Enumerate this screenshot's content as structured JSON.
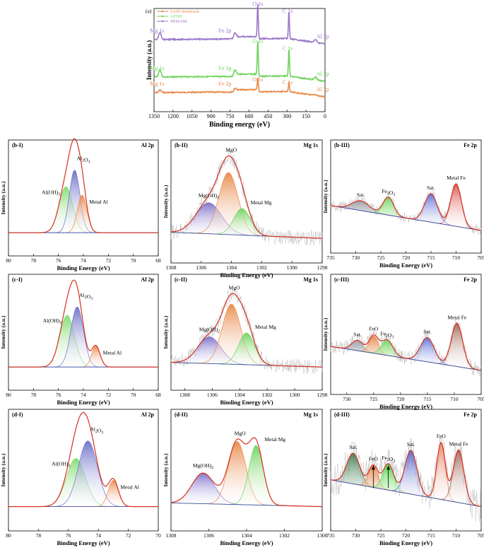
{
  "figure": {
    "accent_colors": {
      "feedstock": "#e8894a",
      "afsd": "#6fd35c",
      "hhsam": "#9b77c9",
      "envelope": "#d9301f"
    }
  },
  "chart_data": [
    {
      "id": "a",
      "type": "line",
      "panel_label": "(a)",
      "xlabel": "Binding energy (eV)",
      "ylabel": "Intensity (a.u.)",
      "xlim": [
        1350,
        0
      ],
      "xticks": [
        1350,
        1200,
        1050,
        900,
        750,
        600,
        450,
        300,
        150,
        0
      ],
      "legend": [
        "5A06 feedstock",
        "AFSD",
        "HHSAM"
      ],
      "legend_position": "top-left",
      "series": [
        {
          "name": "5A06 feedstock",
          "color": "#e8894a",
          "peaks": [
            {
              "x": 1303,
              "label": "Mg 1s"
            },
            {
              "x": 711,
              "label": "Fe 2p"
            },
            {
              "x": 531,
              "label": "O 1s"
            },
            {
              "x": 285,
              "label": "C 1s"
            },
            {
              "x": 74,
              "label": "Al 2p"
            }
          ]
        },
        {
          "name": "AFSD",
          "color": "#6fd35c",
          "peaks": [
            {
              "x": 1303,
              "label": "Mg 1s"
            },
            {
              "x": 711,
              "label": "Fe 2p"
            },
            {
              "x": 531,
              "label": "O 1s"
            },
            {
              "x": 285,
              "label": "C 1s"
            },
            {
              "x": 74,
              "label": "Al 2p"
            }
          ]
        },
        {
          "name": "HHSAM",
          "color": "#9b77c9",
          "peaks": [
            {
              "x": 1303,
              "label": "Mg 1s"
            },
            {
              "x": 711,
              "label": "Fe 2p"
            },
            {
              "x": 531,
              "label": "O 1s"
            },
            {
              "x": 285,
              "label": "C 1s"
            },
            {
              "x": 74,
              "label": "Al 2p"
            }
          ]
        }
      ]
    },
    {
      "id": "b-I",
      "type": "line",
      "panel_label": "(b-I)",
      "element": "Al 2p",
      "xlabel": "Binding Energy (eV)",
      "ylabel": "Intensity (a.u.)",
      "xlim": [
        80,
        68
      ],
      "xticks": [
        80,
        78,
        76,
        74,
        72,
        70,
        68
      ],
      "components": [
        {
          "name": "Al(OH)₃",
          "center": 75.4,
          "fwhm": 1.3,
          "height": 0.55,
          "color": "#7fdc6f"
        },
        {
          "name": "Al₂O₃",
          "center": 74.7,
          "fwhm": 1.0,
          "height": 0.75,
          "color": "#6b6ec9"
        },
        {
          "name": "Metal Al",
          "center": 74.1,
          "fwhm": 0.9,
          "height": 0.45,
          "color": "#e8894a"
        }
      ]
    },
    {
      "id": "b-II",
      "type": "line",
      "panel_label": "(b-II)",
      "element": "Mg 1s",
      "xlabel": "Binding Energy (eV)",
      "ylabel": "Intensity (a.u.)",
      "xlim": [
        1308,
        1298
      ],
      "xticks": [
        1308,
        1306,
        1304,
        1302,
        1300,
        1298
      ],
      "components": [
        {
          "name": "Mg(OH)₂",
          "center": 1305.5,
          "fwhm": 2.0,
          "height": 0.35,
          "color": "#7e6ec9"
        },
        {
          "name": "MgO",
          "center": 1304.2,
          "fwhm": 1.5,
          "height": 0.7,
          "color": "#e8894a"
        },
        {
          "name": "Metal Mg",
          "center": 1303.3,
          "fwhm": 1.3,
          "height": 0.3,
          "color": "#6fd35c"
        }
      ]
    },
    {
      "id": "b-III",
      "type": "line",
      "panel_label": "(b-III)",
      "element": "Fe 2p",
      "xlabel": "Binding Energy (eV)",
      "ylabel": "Intensity (a.u.)",
      "xlim": [
        735,
        705
      ],
      "xticks": [
        735,
        730,
        725,
        720,
        715,
        710,
        705
      ],
      "components": [
        {
          "name": "Sat.",
          "center": 729,
          "fwhm": 4.0,
          "height": 0.12,
          "color": "#9aa0a6"
        },
        {
          "name": "Fe₂O₃",
          "center": 723.5,
          "fwhm": 2.5,
          "height": 0.22,
          "color": "#6fd35c"
        },
        {
          "name": "Sat.",
          "center": 715,
          "fwhm": 3.0,
          "height": 0.35,
          "color": "#5b6fd6"
        },
        {
          "name": "Metal Fe",
          "center": 710,
          "fwhm": 2.5,
          "height": 0.52,
          "color": "#d9534f"
        }
      ]
    },
    {
      "id": "c-I",
      "type": "line",
      "panel_label": "(c-I)",
      "element": "Al 2p",
      "xlabel": "Binding Energy (eV)",
      "ylabel": "Intensity (a.u.)",
      "xlim": [
        80,
        68
      ],
      "xticks": [
        80,
        78,
        76,
        74,
        72,
        70,
        68
      ],
      "components": [
        {
          "name": "Al(OH)₃",
          "center": 75.3,
          "fwhm": 1.4,
          "height": 0.62,
          "color": "#7fdc6f"
        },
        {
          "name": "Al₂O₃",
          "center": 74.5,
          "fwhm": 1.2,
          "height": 0.72,
          "color": "#6b6ec9"
        },
        {
          "name": "Metal Al",
          "center": 73.0,
          "fwhm": 0.8,
          "height": 0.25,
          "color": "#e8894a"
        }
      ]
    },
    {
      "id": "c-II",
      "type": "line",
      "panel_label": "(c-II)",
      "element": "Mg 1s",
      "xlabel": "Binding Energy (eV)",
      "ylabel": "Intensity (a.u.)",
      "xlim": [
        1309,
        1298
      ],
      "xticks": [
        1308,
        1306,
        1304,
        1302,
        1300,
        1298
      ],
      "components": [
        {
          "name": "Mg(OH)₂",
          "center": 1306.2,
          "fwhm": 2.0,
          "height": 0.32,
          "color": "#7e6ec9"
        },
        {
          "name": "MgO",
          "center": 1304.6,
          "fwhm": 1.6,
          "height": 0.72,
          "color": "#e8894a"
        },
        {
          "name": "Metal Mg",
          "center": 1303.5,
          "fwhm": 1.4,
          "height": 0.38,
          "color": "#6fd35c"
        }
      ]
    },
    {
      "id": "c-III",
      "type": "line",
      "panel_label": "(c-III)",
      "element": "Fe 2p",
      "xlabel": "Binding Energy (eV)",
      "ylabel": "Intensity (a.u.)",
      "xlim": [
        733,
        705
      ],
      "xticks": [
        730,
        725,
        720,
        715,
        710,
        705
      ],
      "components": [
        {
          "name": "Sat.",
          "center": 728,
          "fwhm": 2.5,
          "height": 0.12,
          "color": "#9aa0a6"
        },
        {
          "name": "FeO",
          "center": 725,
          "fwhm": 2.0,
          "height": 0.2,
          "color": "#e8894a"
        },
        {
          "name": "Fe₂O₃",
          "center": 722.5,
          "fwhm": 2.5,
          "height": 0.18,
          "color": "#6fd35c"
        },
        {
          "name": "Sat.",
          "center": 715,
          "fwhm": 3.0,
          "height": 0.28,
          "color": "#5b6fd6"
        },
        {
          "name": "Metal Fe",
          "center": 709.5,
          "fwhm": 2.5,
          "height": 0.5,
          "color": "#a0685a"
        }
      ]
    },
    {
      "id": "d-I",
      "type": "line",
      "panel_label": "(d-I)",
      "element": "Al 2p",
      "xlabel": "Binding Energy (eV)",
      "ylabel": "Intensity (a.u.)",
      "xlim": [
        80,
        70
      ],
      "xticks": [
        80,
        78,
        76,
        74,
        72,
        70
      ],
      "components": [
        {
          "name": "Al(OH)₃",
          "center": 75.5,
          "fwhm": 1.5,
          "height": 0.55,
          "color": "#7fdc6f"
        },
        {
          "name": "Al₂O₃",
          "center": 74.7,
          "fwhm": 1.5,
          "height": 0.75,
          "color": "#6b6ec9"
        },
        {
          "name": "Metal Al",
          "center": 73.0,
          "fwhm": 0.8,
          "height": 0.3,
          "color": "#e8894a"
        }
      ]
    },
    {
      "id": "d-II",
      "type": "line",
      "panel_label": "(d-II)",
      "element": "Mg 1s",
      "xlabel": "Binding Energy (eV)",
      "ylabel": "Intensity (a.u.)",
      "xlim": [
        1308,
        1300
      ],
      "xticks": [
        1308,
        1306,
        1304,
        1302,
        1300
      ],
      "components": [
        {
          "name": "Mg(OH)₂",
          "center": 1306.3,
          "fwhm": 1.4,
          "height": 0.35,
          "color": "#7e6ec9"
        },
        {
          "name": "MgO",
          "center": 1304.5,
          "fwhm": 1.1,
          "height": 0.72,
          "color": "#e8894a"
        },
        {
          "name": "Metal Mg",
          "center": 1303.5,
          "fwhm": 0.9,
          "height": 0.68,
          "color": "#6fd35c"
        }
      ]
    },
    {
      "id": "d-III",
      "type": "line",
      "panel_label": "(d-III)",
      "element": "Fe 2p",
      "xlabel": "Binding Energy (eV)",
      "ylabel": "Intensity (a.u.)",
      "xlim": [
        735,
        705
      ],
      "xticks": [
        735,
        730,
        725,
        720,
        715,
        710,
        705
      ],
      "components": [
        {
          "name": "Sat.",
          "center": 730.5,
          "fwhm": 3.0,
          "height": 0.35,
          "color": "#3f7f52"
        },
        {
          "name": "FeO",
          "center": 726.5,
          "fwhm": 2.2,
          "height": 0.25,
          "color": "#e8894a"
        },
        {
          "name": "Fe₂O₃",
          "center": 723.5,
          "fwhm": 2.5,
          "height": 0.3,
          "color": "#4fd845"
        },
        {
          "name": "Sat.",
          "center": 719,
          "fwhm": 2.8,
          "height": 0.5,
          "color": "#5464cc"
        },
        {
          "name": "FeO",
          "center": 713,
          "fwhm": 2.0,
          "height": 0.65,
          "color": "#e8896a"
        },
        {
          "name": "Metal Fe",
          "center": 709.5,
          "fwhm": 2.5,
          "height": 0.6,
          "color": "#a0685a"
        }
      ],
      "arrows_at": [
        726.5,
        723.5
      ]
    }
  ]
}
